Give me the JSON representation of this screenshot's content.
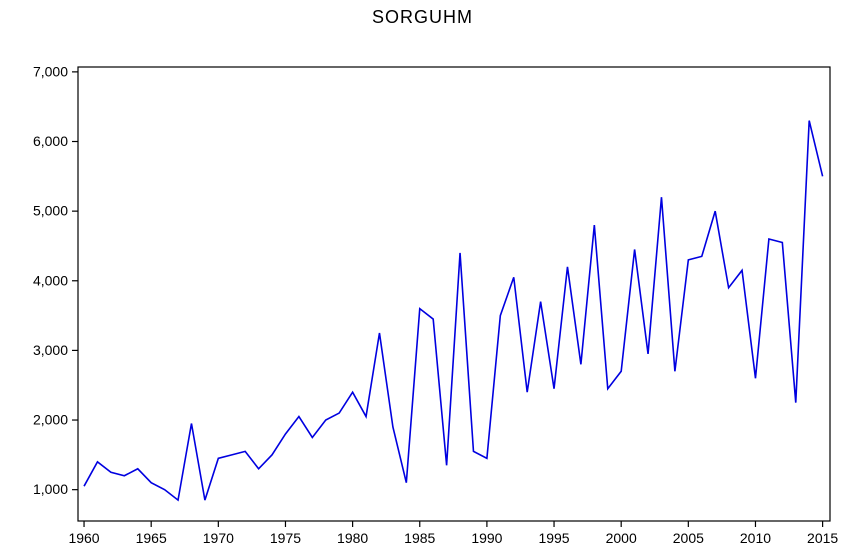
{
  "chart_data": {
    "type": "line",
    "title": "SORGUHM",
    "xlabel": "",
    "ylabel": "",
    "legend": "none",
    "grid": false,
    "frame": true,
    "xlim": [
      1959.55,
      2015.55
    ],
    "ylim": [
      550,
      7070
    ],
    "xticks": [
      1960,
      1965,
      1970,
      1975,
      1980,
      1985,
      1990,
      1995,
      2000,
      2005,
      2010,
      2015
    ],
    "yticks": [
      1000,
      2000,
      3000,
      4000,
      5000,
      6000,
      7000
    ],
    "ytick_labels": [
      "1,000",
      "2,000",
      "3,000",
      "4,000",
      "5,000",
      "6,000",
      "7,000"
    ],
    "x": [
      1960,
      1961,
      1962,
      1963,
      1964,
      1965,
      1966,
      1967,
      1968,
      1969,
      1970,
      1971,
      1972,
      1973,
      1974,
      1975,
      1976,
      1977,
      1978,
      1979,
      1980,
      1981,
      1982,
      1983,
      1984,
      1985,
      1986,
      1987,
      1988,
      1989,
      1990,
      1991,
      1992,
      1993,
      1994,
      1995,
      1996,
      1997,
      1998,
      1999,
      2000,
      2001,
      2002,
      2003,
      2004,
      2005,
      2006,
      2007,
      2008,
      2009,
      2010,
      2011,
      2012,
      2013,
      2014,
      2015
    ],
    "series": [
      {
        "name": "SORGUHM",
        "color": "#0000e0",
        "values": [
          1050,
          1400,
          1250,
          1200,
          1300,
          1100,
          1000,
          850,
          1950,
          850,
          1450,
          1500,
          1550,
          1300,
          1500,
          1800,
          2050,
          1750,
          2000,
          2100,
          2400,
          2050,
          3250,
          1900,
          1100,
          3600,
          3450,
          1350,
          4400,
          1550,
          1450,
          3500,
          4050,
          2400,
          3700,
          2450,
          4200,
          2800,
          4800,
          2450,
          2700,
          4450,
          2950,
          5200,
          2700,
          4300,
          4350,
          5000,
          3900,
          4150,
          2600,
          4600,
          4550,
          2250,
          6300,
          5500
        ]
      }
    ]
  },
  "colors": {
    "line": "#0000e0",
    "frame": "#000000",
    "text": "#000000",
    "background": "#ffffff"
  }
}
